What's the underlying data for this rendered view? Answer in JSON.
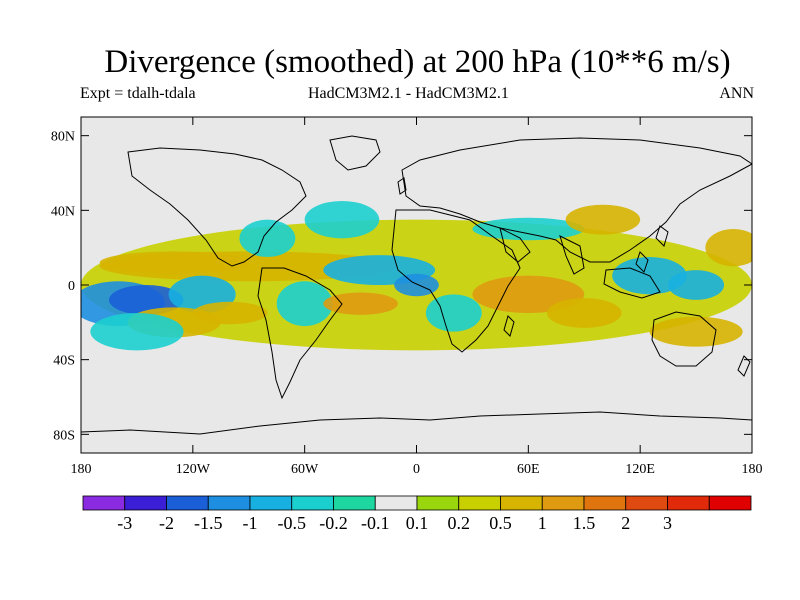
{
  "title": "Divergence (smoothed) at 200 hPa (10**6 m/s)",
  "experiment": "Expt = tdalh-tdala",
  "model": "HadCM3M2.1 - HadCM3M2.1",
  "season": "ANN",
  "map": {
    "projection": "cylindrical-equidistant",
    "lon_range": [
      -180,
      180
    ],
    "lat_range": [
      -90,
      90
    ],
    "background_color": "#e8e8e8",
    "y_ticks": [
      {
        "lat": 80,
        "label": "80N"
      },
      {
        "lat": 40,
        "label": "40N"
      },
      {
        "lat": 0,
        "label": "0"
      },
      {
        "lat": -40,
        "label": "40S"
      },
      {
        "lat": -80,
        "label": "80S"
      }
    ],
    "x_ticks": [
      {
        "lon": -180,
        "label": "180"
      },
      {
        "lon": -120,
        "label": "120W"
      },
      {
        "lon": -60,
        "label": "60W"
      },
      {
        "lon": 0,
        "label": "0"
      },
      {
        "lon": 60,
        "label": "60E"
      },
      {
        "lon": 120,
        "label": "120E"
      },
      {
        "lon": 180,
        "label": "180"
      }
    ]
  },
  "colorbar": {
    "colors": [
      "#8a2be2",
      "#3a1fd6",
      "#1a5fd8",
      "#1e8fe0",
      "#18b0e0",
      "#1ccfcf",
      "#1ed6a0",
      "#e8e8e8",
      "#9ad60e",
      "#c8d000",
      "#d6b400",
      "#de9a10",
      "#e0740e",
      "#de4a10",
      "#e02a0a",
      "#e00000"
    ],
    "labels": [
      "-3",
      "-2",
      "-1.5",
      "-1",
      "-0.5",
      "-0.2",
      "-0.1",
      "0.1",
      "0.2",
      "0.5",
      "1",
      "1.5",
      "2",
      "3"
    ]
  },
  "chart_data": {
    "type": "heatmap",
    "variable": "Divergence (smoothed) at 200 hPa",
    "units": "10**6 m/s",
    "levels": [
      -3,
      -2,
      -1.5,
      -1,
      -0.5,
      -0.2,
      -0.1,
      0.1,
      0.2,
      0.5,
      1,
      1.5,
      2,
      3
    ],
    "features": [
      {
        "lon": 0,
        "lat": 0,
        "rx": 180,
        "ry": 35,
        "value": 0.3
      },
      {
        "lon": -90,
        "lat": 10,
        "rx": 80,
        "ry": 8,
        "value": 0.6
      },
      {
        "lon": -130,
        "lat": 12,
        "rx": 40,
        "ry": 6,
        "value": 0.8
      },
      {
        "lon": -160,
        "lat": -10,
        "rx": 25,
        "ry": 12,
        "value": -1.2
      },
      {
        "lon": -145,
        "lat": -8,
        "rx": 20,
        "ry": 8,
        "value": -1.8
      },
      {
        "lon": -115,
        "lat": -5,
        "rx": 18,
        "ry": 10,
        "value": -0.6
      },
      {
        "lon": -80,
        "lat": 25,
        "rx": 15,
        "ry": 10,
        "value": -0.5
      },
      {
        "lon": -60,
        "lat": -10,
        "rx": 15,
        "ry": 12,
        "value": -0.4
      },
      {
        "lon": -130,
        "lat": -20,
        "rx": 25,
        "ry": 8,
        "value": 0.8
      },
      {
        "lon": -100,
        "lat": -15,
        "rx": 20,
        "ry": 6,
        "value": 0.5
      },
      {
        "lon": -40,
        "lat": 35,
        "rx": 20,
        "ry": 10,
        "value": -0.4
      },
      {
        "lon": -20,
        "lat": 8,
        "rx": 30,
        "ry": 8,
        "value": -0.7
      },
      {
        "lon": -30,
        "lat": -10,
        "rx": 20,
        "ry": 6,
        "value": 1.2
      },
      {
        "lon": 0,
        "lat": 0,
        "rx": 12,
        "ry": 6,
        "value": -1.3
      },
      {
        "lon": 20,
        "lat": -15,
        "rx": 15,
        "ry": 10,
        "value": -0.4
      },
      {
        "lon": 60,
        "lat": -5,
        "rx": 30,
        "ry": 10,
        "value": 1.2
      },
      {
        "lon": 90,
        "lat": -15,
        "rx": 20,
        "ry": 8,
        "value": 0.8
      },
      {
        "lon": 60,
        "lat": 30,
        "rx": 30,
        "ry": 6,
        "value": -0.4
      },
      {
        "lon": 100,
        "lat": 35,
        "rx": 20,
        "ry": 8,
        "value": 0.5
      },
      {
        "lon": 125,
        "lat": 5,
        "rx": 20,
        "ry": 10,
        "value": -1.0
      },
      {
        "lon": 150,
        "lat": 0,
        "rx": 15,
        "ry": 8,
        "value": -0.6
      },
      {
        "lon": 150,
        "lat": -25,
        "rx": 25,
        "ry": 8,
        "value": 0.5
      },
      {
        "lon": 170,
        "lat": 20,
        "rx": 15,
        "ry": 10,
        "value": 0.5
      },
      {
        "lon": -150,
        "lat": -25,
        "rx": 25,
        "ry": 10,
        "value": -0.3
      }
    ]
  }
}
